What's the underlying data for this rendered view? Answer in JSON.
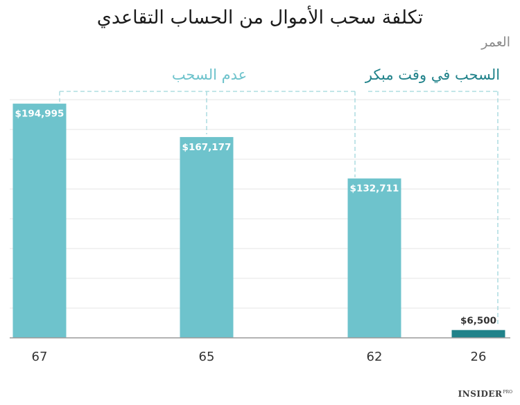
{
  "chart_data": {
    "type": "bar",
    "title": "تكلفة سحب الأموال من الحساب التقاعدي",
    "axis_title": "العمر",
    "categories": [
      "67",
      "65",
      "62",
      "26"
    ],
    "values": [
      194995,
      167177,
      132711,
      6500
    ],
    "value_labels": [
      "$194,995",
      "$167,177",
      "$132,711",
      "$6,500"
    ],
    "ylim": [
      0,
      200000
    ],
    "grid": true,
    "groups": [
      {
        "label": "عدم السحب",
        "categories": [
          "67",
          "65",
          "62"
        ],
        "color": "#6ec3cc"
      },
      {
        "label": "السحب في وقت مبكر",
        "categories": [
          "26"
        ],
        "color": "#20828a"
      }
    ]
  },
  "colors": {
    "bar_light": "#6ec3cc",
    "bar_dark": "#20828a",
    "label_light": "#6ec3cc",
    "label_dark": "#20828a",
    "grid": "#e6e6e6",
    "baseline": "#9a9a9a",
    "dash": "#9fd6db"
  },
  "brand": {
    "name": "INSIDER",
    "suffix": "PRO"
  }
}
